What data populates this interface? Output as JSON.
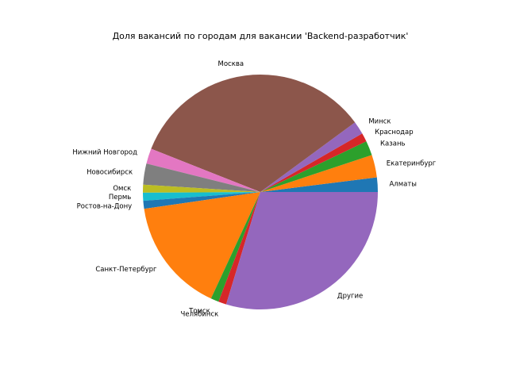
{
  "chart_data": {
    "type": "pie",
    "title": "Доля вакансий по городам для вакансии 'Backend-разработчик'",
    "start_angle_deg": 0,
    "direction": "counterclockwise",
    "slices": [
      {
        "label": "Алматы",
        "value": 2.0,
        "color": "#1f77b4"
      },
      {
        "label": "Екатеринбург",
        "value": 3.1,
        "color": "#ff7f0e"
      },
      {
        "label": "Казань",
        "value": 2.0,
        "color": "#2ca02c"
      },
      {
        "label": "Краснодар",
        "value": 1.2,
        "color": "#d62728"
      },
      {
        "label": "Минск",
        "value": 1.8,
        "color": "#9467bd"
      },
      {
        "label": "Москва",
        "value": 33.9,
        "color": "#8c564b"
      },
      {
        "label": "Нижний Новгород",
        "value": 2.1,
        "color": "#e377c2"
      },
      {
        "label": "Новосибирск",
        "value": 2.9,
        "color": "#7f7f7f"
      },
      {
        "label": "Омск",
        "value": 1.1,
        "color": "#bcbd22"
      },
      {
        "label": "Пермь",
        "value": 1.1,
        "color": "#17becf"
      },
      {
        "label": "Ростов-на-Дону",
        "value": 1.1,
        "color": "#1f77b4"
      },
      {
        "label": "Санкт-Петербург",
        "value": 15.8,
        "color": "#ff7f0e"
      },
      {
        "label": "Томск",
        "value": 1.1,
        "color": "#2ca02c"
      },
      {
        "label": "Челябинск",
        "value": 1.1,
        "color": "#d62728"
      },
      {
        "label": "Другие",
        "value": 29.7,
        "color": "#9467bd"
      }
    ]
  }
}
